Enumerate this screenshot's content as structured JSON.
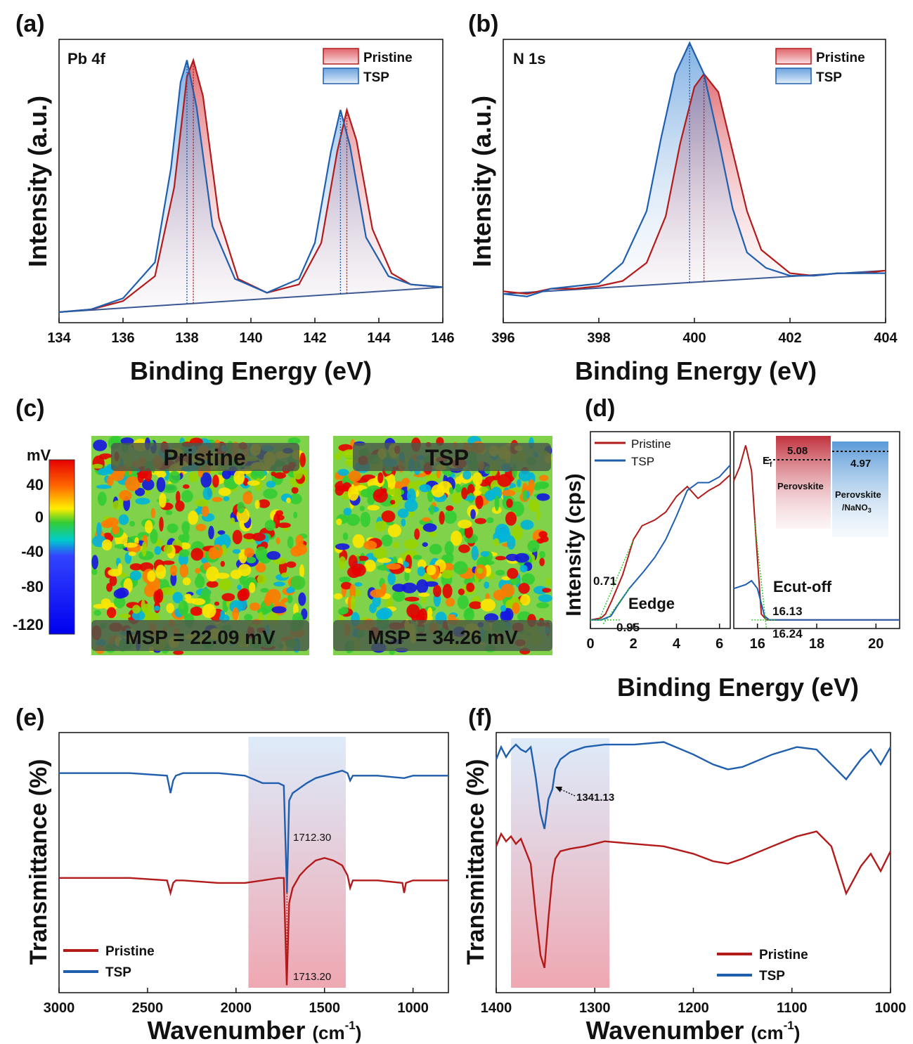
{
  "colors": {
    "pristine": "#b31b1b",
    "tsp": "#1f5fae",
    "guide": "#22cc22",
    "edge_label": "#8b1a8b",
    "pristine_value": "#b31b1b",
    "tsp_value": "#1f5fae"
  },
  "panels": {
    "a": {
      "letter": "(a)",
      "tag": "Pb 4f"
    },
    "b": {
      "letter": "(b)",
      "tag": "N 1s"
    },
    "c": {
      "letter": "(c)"
    },
    "d": {
      "letter": "(d)"
    },
    "e": {
      "letter": "(e)"
    },
    "f": {
      "letter": "(f)"
    }
  },
  "legend": {
    "pristine": "Pristine",
    "tsp": "TSP"
  },
  "kpfm": {
    "unit": "mV",
    "scale_ticks": [
      "40",
      "0",
      "-40",
      "-80",
      "-120"
    ],
    "maps": [
      {
        "title": "Pristine",
        "msp": "MSP = 22.09 mV",
        "seed": 7,
        "bias": 0.0
      },
      {
        "title": "TSP",
        "msp": "MSP = 34.26 mV",
        "seed": 19,
        "bias": 0.06
      }
    ]
  },
  "chart_data": [
    {
      "panel": "a",
      "type": "line",
      "xlabel": "Binding Energy (eV)",
      "ylabel": "Intensity (a.u.)",
      "xlim": [
        134,
        146
      ],
      "xticks": [
        134,
        136,
        138,
        140,
        142,
        144,
        146
      ],
      "peaks": {
        "pristine": [
          138.2,
          143.0
        ],
        "tsp": [
          138.0,
          142.8
        ]
      },
      "series": [
        {
          "name": "Pristine",
          "x": [
            134,
            135,
            136,
            137,
            137.6,
            138.0,
            138.2,
            138.5,
            139,
            139.6,
            140.5,
            141.5,
            142.2,
            142.7,
            143.0,
            143.3,
            143.8,
            144.4,
            145,
            146
          ],
          "y": [
            0.0,
            0.01,
            0.04,
            0.13,
            0.45,
            0.85,
            0.91,
            0.78,
            0.34,
            0.12,
            0.07,
            0.1,
            0.25,
            0.58,
            0.73,
            0.62,
            0.3,
            0.14,
            0.1,
            0.09
          ]
        },
        {
          "name": "TSP",
          "x": [
            134,
            135,
            136,
            137,
            137.5,
            137.8,
            138.0,
            138.3,
            138.8,
            139.5,
            140.5,
            141.5,
            142.0,
            142.5,
            142.8,
            143.1,
            143.6,
            144.3,
            145,
            146
          ],
          "y": [
            0.0,
            0.01,
            0.05,
            0.18,
            0.52,
            0.83,
            0.91,
            0.74,
            0.31,
            0.12,
            0.07,
            0.12,
            0.25,
            0.58,
            0.73,
            0.6,
            0.27,
            0.13,
            0.1,
            0.09
          ]
        }
      ]
    },
    {
      "panel": "b",
      "type": "line",
      "xlabel": "Binding Energy (eV)",
      "ylabel": "Intensity (a.u.)",
      "xlim": [
        396,
        404
      ],
      "xticks": [
        396,
        398,
        400,
        402,
        404
      ],
      "peaks": {
        "pristine": [
          400.2
        ],
        "tsp": [
          399.9
        ]
      },
      "series": [
        {
          "name": "Pristine",
          "x": [
            396,
            396.5,
            397,
            397.5,
            398,
            398.5,
            399,
            399.4,
            399.7,
            400.0,
            400.2,
            400.5,
            400.8,
            401.1,
            401.4,
            402,
            402.5,
            403,
            403.5,
            404
          ],
          "y": [
            0.01,
            0.0,
            0.02,
            0.02,
            0.03,
            0.05,
            0.12,
            0.3,
            0.58,
            0.8,
            0.85,
            0.78,
            0.55,
            0.32,
            0.17,
            0.08,
            0.07,
            0.08,
            0.08,
            0.09
          ]
        },
        {
          "name": "TSP",
          "x": [
            396,
            396.5,
            397,
            397.5,
            398,
            398.5,
            399,
            399.3,
            399.6,
            399.9,
            400.2,
            400.5,
            400.8,
            401.1,
            401.5,
            402,
            402.5,
            403,
            403.5,
            404
          ],
          "y": [
            0.0,
            -0.01,
            0.02,
            0.03,
            0.04,
            0.12,
            0.32,
            0.6,
            0.85,
            0.97,
            0.85,
            0.6,
            0.33,
            0.16,
            0.1,
            0.07,
            0.07,
            0.08,
            0.08,
            0.08
          ]
        }
      ]
    },
    {
      "panel": "d",
      "type": "line",
      "xlabel": "Binding Energy (eV)",
      "ylabel": "Intensity (cps)",
      "left_xlim": [
        0,
        6.5
      ],
      "left_xticks": [
        0,
        2,
        4,
        6
      ],
      "right_xlim": [
        15.2,
        20.8
      ],
      "right_xticks": [
        16,
        18,
        20
      ],
      "annotations": {
        "edge": "Eedge",
        "cutoff": "Ecut-off",
        "pristine_edge": "0.71",
        "tsp_edge": "0.95",
        "pristine_cut": "16.13",
        "tsp_cut": "16.24"
      },
      "inset": {
        "ef": "E",
        "ef_sub": "f",
        "pristine_wf": "5.08",
        "tsp_wf": "4.97",
        "pristine_label": "Perovskite",
        "tsp_label": "Perovskite",
        "tsp_label2": "/NaNO",
        "tsp_label2_sub": "3"
      },
      "left_series": [
        {
          "name": "Pristine",
          "x": [
            0,
            0.5,
            0.7,
            1.0,
            1.5,
            2.0,
            2.4,
            3.0,
            3.5,
            4.0,
            4.5,
            5.0,
            5.5,
            6.0,
            6.5
          ],
          "y": [
            0.04,
            0.05,
            0.07,
            0.14,
            0.27,
            0.45,
            0.52,
            0.55,
            0.59,
            0.67,
            0.72,
            0.66,
            0.7,
            0.73,
            0.78
          ]
        },
        {
          "name": "TSP",
          "x": [
            0,
            0.5,
            0.95,
            1.3,
            1.8,
            2.5,
            3.0,
            3.5,
            4.0,
            4.5,
            5.0,
            5.5,
            6.0,
            6.5
          ],
          "y": [
            0.04,
            0.04,
            0.06,
            0.12,
            0.2,
            0.29,
            0.36,
            0.45,
            0.57,
            0.7,
            0.74,
            0.74,
            0.77,
            0.83
          ]
        }
      ],
      "right_series": [
        {
          "name": "Pristine",
          "x": [
            15.2,
            15.4,
            15.6,
            15.8,
            16.0,
            16.13,
            16.3,
            17,
            18,
            19,
            20,
            20.8
          ],
          "y": [
            0.75,
            0.82,
            0.93,
            0.8,
            0.35,
            0.07,
            0.04,
            0.04,
            0.04,
            0.04,
            0.04,
            0.04
          ]
        },
        {
          "name": "TSP",
          "x": [
            15.2,
            15.4,
            15.6,
            15.8,
            16.0,
            16.24,
            16.4,
            17,
            18,
            19,
            20,
            20.8
          ],
          "y": [
            0.2,
            0.21,
            0.22,
            0.24,
            0.2,
            0.06,
            0.04,
            0.04,
            0.04,
            0.04,
            0.04,
            0.04
          ]
        }
      ]
    },
    {
      "panel": "e",
      "type": "line",
      "xlabel": "Wavenumber",
      "xlabel_unit": "(cm",
      "xlabel_sup": "-1",
      "xlabel_close": ")",
      "ylabel": "Transmittance (%)",
      "xlim": [
        3000,
        800
      ],
      "xticks": [
        3000,
        2500,
        2000,
        1500,
        1000
      ],
      "annotations": {
        "tsp_peak": "1712.30",
        "pristine_peak": "1713.20"
      },
      "shaded_band": [
        1930,
        1380
      ],
      "series": [
        {
          "name": "TSP",
          "x": [
            3000,
            2600,
            2390,
            2370,
            2355,
            2340,
            2300,
            2100,
            1950,
            1850,
            1760,
            1730,
            1712.3,
            1700,
            1680,
            1640,
            1600,
            1550,
            1500,
            1450,
            1400,
            1370,
            1355,
            1340,
            1200,
            1050,
            1000,
            800
          ],
          "y": [
            0.86,
            0.86,
            0.85,
            0.78,
            0.83,
            0.85,
            0.86,
            0.86,
            0.85,
            0.82,
            0.82,
            0.81,
            0.38,
            0.75,
            0.78,
            0.8,
            0.82,
            0.84,
            0.85,
            0.86,
            0.87,
            0.86,
            0.83,
            0.85,
            0.85,
            0.84,
            0.85,
            0.85
          ]
        },
        {
          "name": "Pristine",
          "x": [
            3000,
            2600,
            2390,
            2370,
            2355,
            2340,
            2300,
            2100,
            1950,
            1850,
            1760,
            1730,
            1713.2,
            1700,
            1680,
            1640,
            1600,
            1550,
            1500,
            1450,
            1400,
            1370,
            1355,
            1340,
            1200,
            1060,
            1050,
            1040,
            1000,
            800
          ],
          "y": [
            0.44,
            0.44,
            0.43,
            0.38,
            0.42,
            0.43,
            0.43,
            0.42,
            0.42,
            0.43,
            0.44,
            0.44,
            0.01,
            0.34,
            0.4,
            0.45,
            0.48,
            0.51,
            0.52,
            0.51,
            0.49,
            0.45,
            0.4,
            0.43,
            0.43,
            0.42,
            0.38,
            0.42,
            0.43,
            0.43
          ]
        }
      ]
    },
    {
      "panel": "f",
      "type": "line",
      "xlabel": "Wavenumber",
      "xlabel_unit": "(cm",
      "xlabel_sup": "-1",
      "xlabel_close": ")",
      "ylabel": "Transmittance (%)",
      "xlim": [
        1400,
        1000
      ],
      "xticks": [
        1400,
        1300,
        1200,
        1100,
        1000
      ],
      "annotations": {
        "tsp_peak": "1341.13"
      },
      "shaded_band": [
        1385,
        1285
      ],
      "series": [
        {
          "name": "TSP",
          "x": [
            1400,
            1395,
            1390,
            1385,
            1380,
            1375,
            1370,
            1365,
            1360,
            1355,
            1351,
            1347,
            1343,
            1340,
            1335,
            1325,
            1310,
            1290,
            1260,
            1230,
            1200,
            1180,
            1165,
            1150,
            1120,
            1095,
            1075,
            1060,
            1045,
            1030,
            1020,
            1010,
            1000
          ],
          "y": [
            0.92,
            0.97,
            0.93,
            0.96,
            0.98,
            0.96,
            0.95,
            0.97,
            0.85,
            0.7,
            0.64,
            0.76,
            0.8,
            0.88,
            0.92,
            0.95,
            0.97,
            0.98,
            0.98,
            0.99,
            0.94,
            0.9,
            0.88,
            0.89,
            0.94,
            0.97,
            0.96,
            0.9,
            0.84,
            0.92,
            0.96,
            0.9,
            0.97
          ]
        },
        {
          "name": "Pristine",
          "x": [
            1400,
            1395,
            1390,
            1385,
            1380,
            1375,
            1370,
            1365,
            1360,
            1355,
            1351,
            1347,
            1343,
            1340,
            1335,
            1325,
            1310,
            1290,
            1260,
            1230,
            1200,
            1180,
            1165,
            1150,
            1120,
            1095,
            1075,
            1060,
            1045,
            1030,
            1020,
            1010,
            1000
          ],
          "y": [
            0.57,
            0.62,
            0.59,
            0.61,
            0.58,
            0.6,
            0.55,
            0.5,
            0.3,
            0.13,
            0.08,
            0.28,
            0.45,
            0.52,
            0.55,
            0.56,
            0.57,
            0.59,
            0.58,
            0.57,
            0.54,
            0.51,
            0.5,
            0.52,
            0.57,
            0.61,
            0.63,
            0.57,
            0.38,
            0.49,
            0.54,
            0.47,
            0.55
          ]
        }
      ]
    }
  ]
}
